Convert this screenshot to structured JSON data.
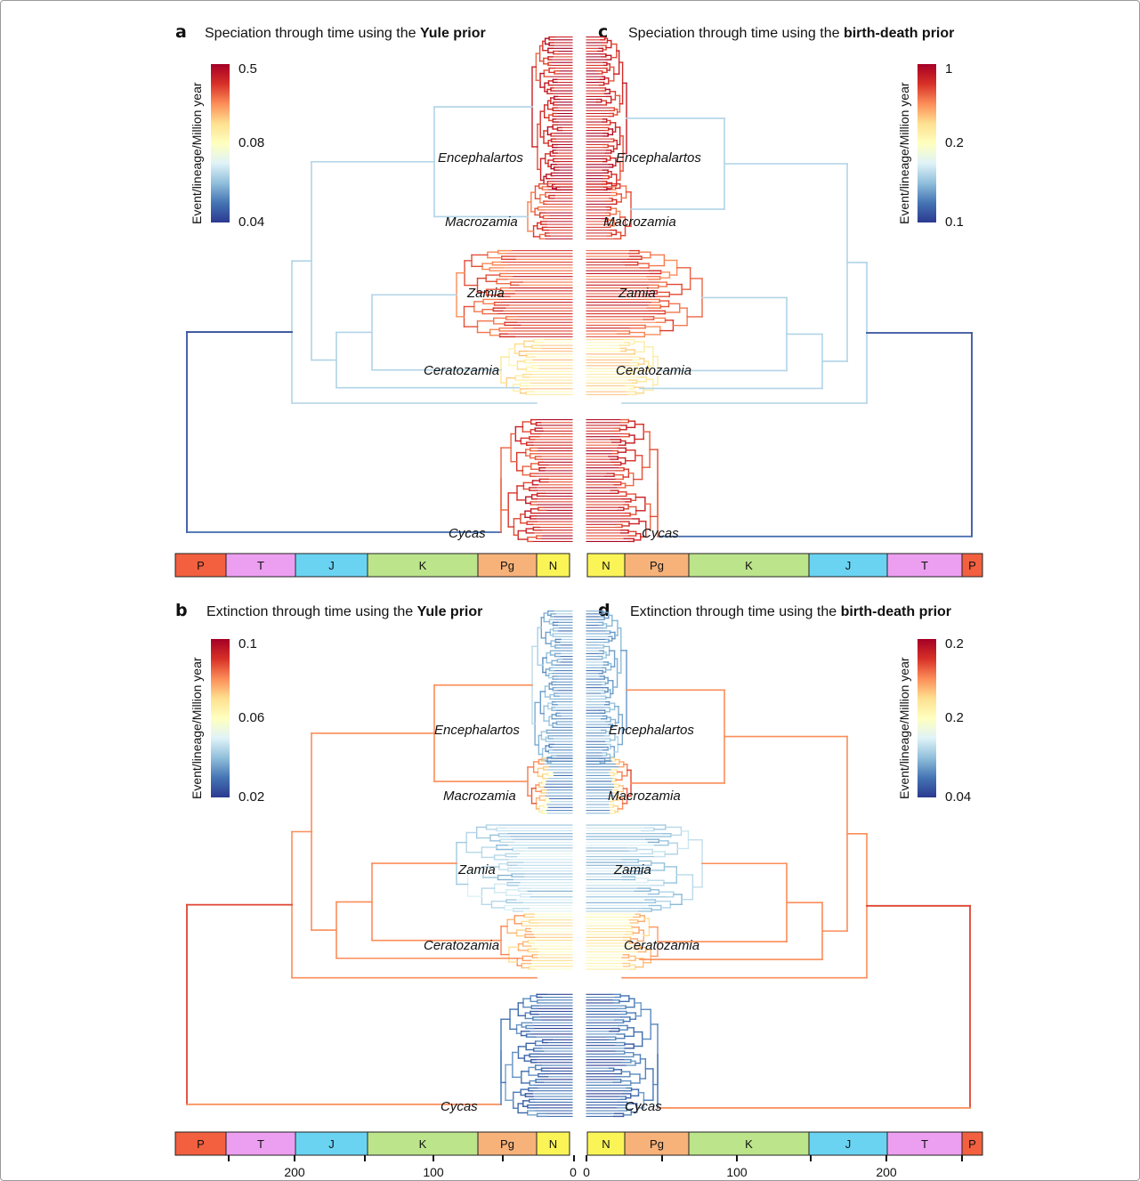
{
  "panels": [
    {
      "id": "a",
      "letter": "a",
      "title_pre": "Speciation through time using the ",
      "title_bold": "Yule prior",
      "side": "left",
      "metric": "speciation",
      "colorbar": {
        "ticks": [
          "0.5",
          "0.08",
          "0.04"
        ],
        "label": "Event/lineage/Million year"
      },
      "clades": [
        "Encephalartos",
        "Macrozamia",
        "Zamia",
        "Ceratozamia",
        "Cycas"
      ],
      "eras": [
        "P",
        "T",
        "J",
        "K",
        "Pg",
        "N"
      ]
    },
    {
      "id": "c",
      "letter": "c",
      "title_pre": "Speciation through time using the ",
      "title_bold": "birth-death prior",
      "side": "right",
      "metric": "speciation",
      "colorbar": {
        "ticks": [
          "1",
          "0.2",
          "0.1"
        ],
        "label": "Event/lineage/Million year"
      },
      "clades": [
        "Encephalartos",
        "Macrozamia",
        "Zamia",
        "Ceratozamia",
        "Cycas"
      ],
      "eras": [
        "N",
        "Pg",
        "K",
        "J",
        "T",
        "P"
      ]
    },
    {
      "id": "b",
      "letter": "b",
      "title_pre": "Extinction through time using the ",
      "title_bold": "Yule prior",
      "side": "left",
      "metric": "extinction",
      "colorbar": {
        "ticks": [
          "0.1",
          "0.06",
          "0.02"
        ],
        "label": "Event/lineage/Million year"
      },
      "clades": [
        "Encephalartos",
        "Macrozamia",
        "Zamia",
        "Ceratozamia",
        "Cycas"
      ],
      "eras": [
        "P",
        "T",
        "J",
        "K",
        "Pg",
        "N"
      ]
    },
    {
      "id": "d",
      "letter": "d",
      "title_pre": "Extinction through time using the ",
      "title_bold": "birth-death prior",
      "side": "right",
      "metric": "extinction",
      "colorbar": {
        "ticks": [
          "0.2",
          "0.2",
          "0.04"
        ],
        "label": "Event/lineage/Million year"
      },
      "clades": [
        "Encephalartos",
        "Macrozamia",
        "Zamia",
        "Ceratozamia",
        "Cycas"
      ],
      "eras": [
        "N",
        "Pg",
        "K",
        "J",
        "T",
        "P"
      ]
    }
  ],
  "era_colors": {
    "P": "#f2603f",
    "T": "#ec9ff0",
    "J": "#6ad3f2",
    "K": "#bce48b",
    "Pg": "#f7b27a",
    "N": "#fbf457"
  },
  "axis": {
    "left_ticks": [
      "200",
      "100",
      "0"
    ],
    "right_ticks": [
      "0",
      "100",
      "200"
    ]
  },
  "colormap": [
    "#2b3990",
    "#4575b4",
    "#91bfdb",
    "#e0f3f8",
    "#ffffbf",
    "#fee090",
    "#fc8d59",
    "#d73027",
    "#a50026"
  ]
}
